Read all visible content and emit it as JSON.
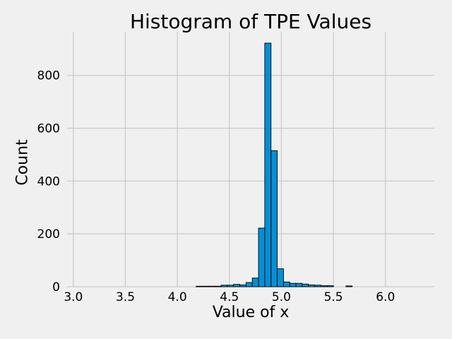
{
  "chart_data": {
    "type": "bar",
    "title": "Histogram of TPE Values",
    "xlabel": "Value of x",
    "ylabel": "Count",
    "xlim": [
      2.94,
      6.47
    ],
    "ylim": [
      0,
      965
    ],
    "xticks": [
      "3.0",
      "3.5",
      "4.0",
      "4.5",
      "5.0",
      "5.5",
      "6.0"
    ],
    "xtick_values": [
      3.0,
      3.5,
      4.0,
      4.5,
      5.0,
      5.5,
      6.0
    ],
    "yticks": [
      "0",
      "200",
      "400",
      "600",
      "800"
    ],
    "ytick_values": [
      0,
      200,
      400,
      600,
      800
    ],
    "bin_width": 0.06,
    "bins": [
      {
        "x0": 4.18,
        "count": 2
      },
      {
        "x0": 4.24,
        "count": 2
      },
      {
        "x0": 4.3,
        "count": 2
      },
      {
        "x0": 4.36,
        "count": 2
      },
      {
        "x0": 4.42,
        "count": 6
      },
      {
        "x0": 4.48,
        "count": 6
      },
      {
        "x0": 4.54,
        "count": 9
      },
      {
        "x0": 4.6,
        "count": 7
      },
      {
        "x0": 4.66,
        "count": 16
      },
      {
        "x0": 4.72,
        "count": 33
      },
      {
        "x0": 4.78,
        "count": 222
      },
      {
        "x0": 4.84,
        "count": 922
      },
      {
        "x0": 4.9,
        "count": 515
      },
      {
        "x0": 4.96,
        "count": 68
      },
      {
        "x0": 5.02,
        "count": 18
      },
      {
        "x0": 5.08,
        "count": 13
      },
      {
        "x0": 5.14,
        "count": 13
      },
      {
        "x0": 5.2,
        "count": 10
      },
      {
        "x0": 5.26,
        "count": 7
      },
      {
        "x0": 5.32,
        "count": 6
      },
      {
        "x0": 5.38,
        "count": 4
      },
      {
        "x0": 5.44,
        "count": 4
      },
      {
        "x0": 5.62,
        "count": 3
      }
    ],
    "bar_color": "#008fd5",
    "edge_color": "#000000",
    "background": "#f0f0f0",
    "grid": true,
    "grid_color": "#cbcbcb"
  }
}
